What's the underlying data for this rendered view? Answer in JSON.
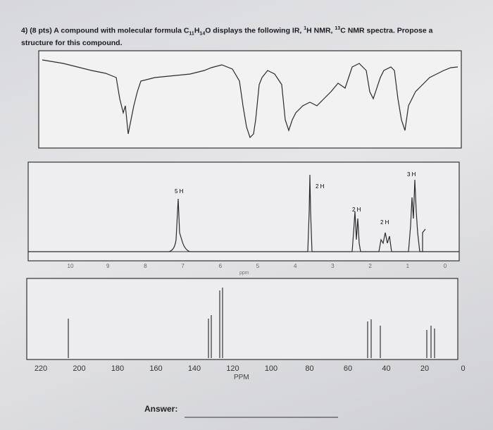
{
  "question": {
    "number": "4)",
    "points": "(8 pts)",
    "parts": [
      "A compound with molecular formula C",
      "11",
      "H",
      "14",
      "O displays the following IR, ",
      "1",
      "H NMR, ",
      "13",
      "C NMR spectra. Propose a structure for this compound."
    ]
  },
  "h_nmr": {
    "integrations": [
      "5 H",
      "2 H",
      "2 H",
      "2 H",
      "3 H"
    ],
    "axis_labels": [
      "10",
      "9",
      "8",
      "7",
      "6",
      "5",
      "4",
      "3",
      "2",
      "1",
      "0"
    ],
    "unit": "ppm"
  },
  "c_nmr": {
    "axis_labels": [
      "220",
      "200",
      "180",
      "160",
      "140",
      "120",
      "100",
      "80",
      "60",
      "40",
      "20",
      "0"
    ],
    "unit": "PPM"
  },
  "answer": {
    "label": "Answer:"
  }
}
